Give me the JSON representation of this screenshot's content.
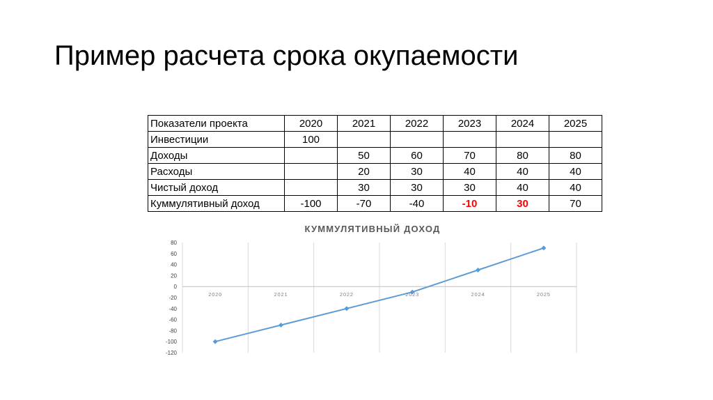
{
  "title": "Пример расчета срока окупаемости",
  "table": {
    "header": [
      "Показатели проекта",
      "2020",
      "2021",
      "2022",
      "2023",
      "2024",
      "2025"
    ],
    "rows": [
      {
        "label": "Инвестиции",
        "cells": [
          "100",
          "",
          "",
          "",
          "",
          ""
        ]
      },
      {
        "label": "Доходы",
        "cells": [
          "",
          "50",
          "60",
          "70",
          "80",
          "80"
        ]
      },
      {
        "label": "Расходы",
        "cells": [
          "",
          "20",
          "30",
          "40",
          "40",
          "40"
        ]
      },
      {
        "label": "Чистый доход",
        "cells": [
          "",
          "30",
          "30",
          "30",
          "40",
          "40"
        ]
      },
      {
        "label": "Куммулятивный доход",
        "cells": [
          "-100",
          "-70",
          "-40",
          "-10",
          "30",
          "70"
        ]
      }
    ],
    "highlight_color": "#ff0000"
  },
  "chart_data": {
    "type": "line",
    "title": "КУММУЛЯТИВНЫЙ ДОХОД",
    "categories": [
      "2020",
      "2021",
      "2022",
      "2023",
      "2024",
      "2025"
    ],
    "series": [
      {
        "values": [
          -100,
          -70,
          -40,
          -10,
          30,
          70
        ],
        "color": "#5b9bd5",
        "marker": "diamond"
      }
    ],
    "ylim": [
      -120,
      80
    ],
    "yticks": [
      "80",
      "60",
      "40",
      "20",
      "0",
      "-20",
      "-40",
      "-60",
      "-80",
      "-100",
      "-120"
    ],
    "grid": true,
    "legend": "none"
  }
}
